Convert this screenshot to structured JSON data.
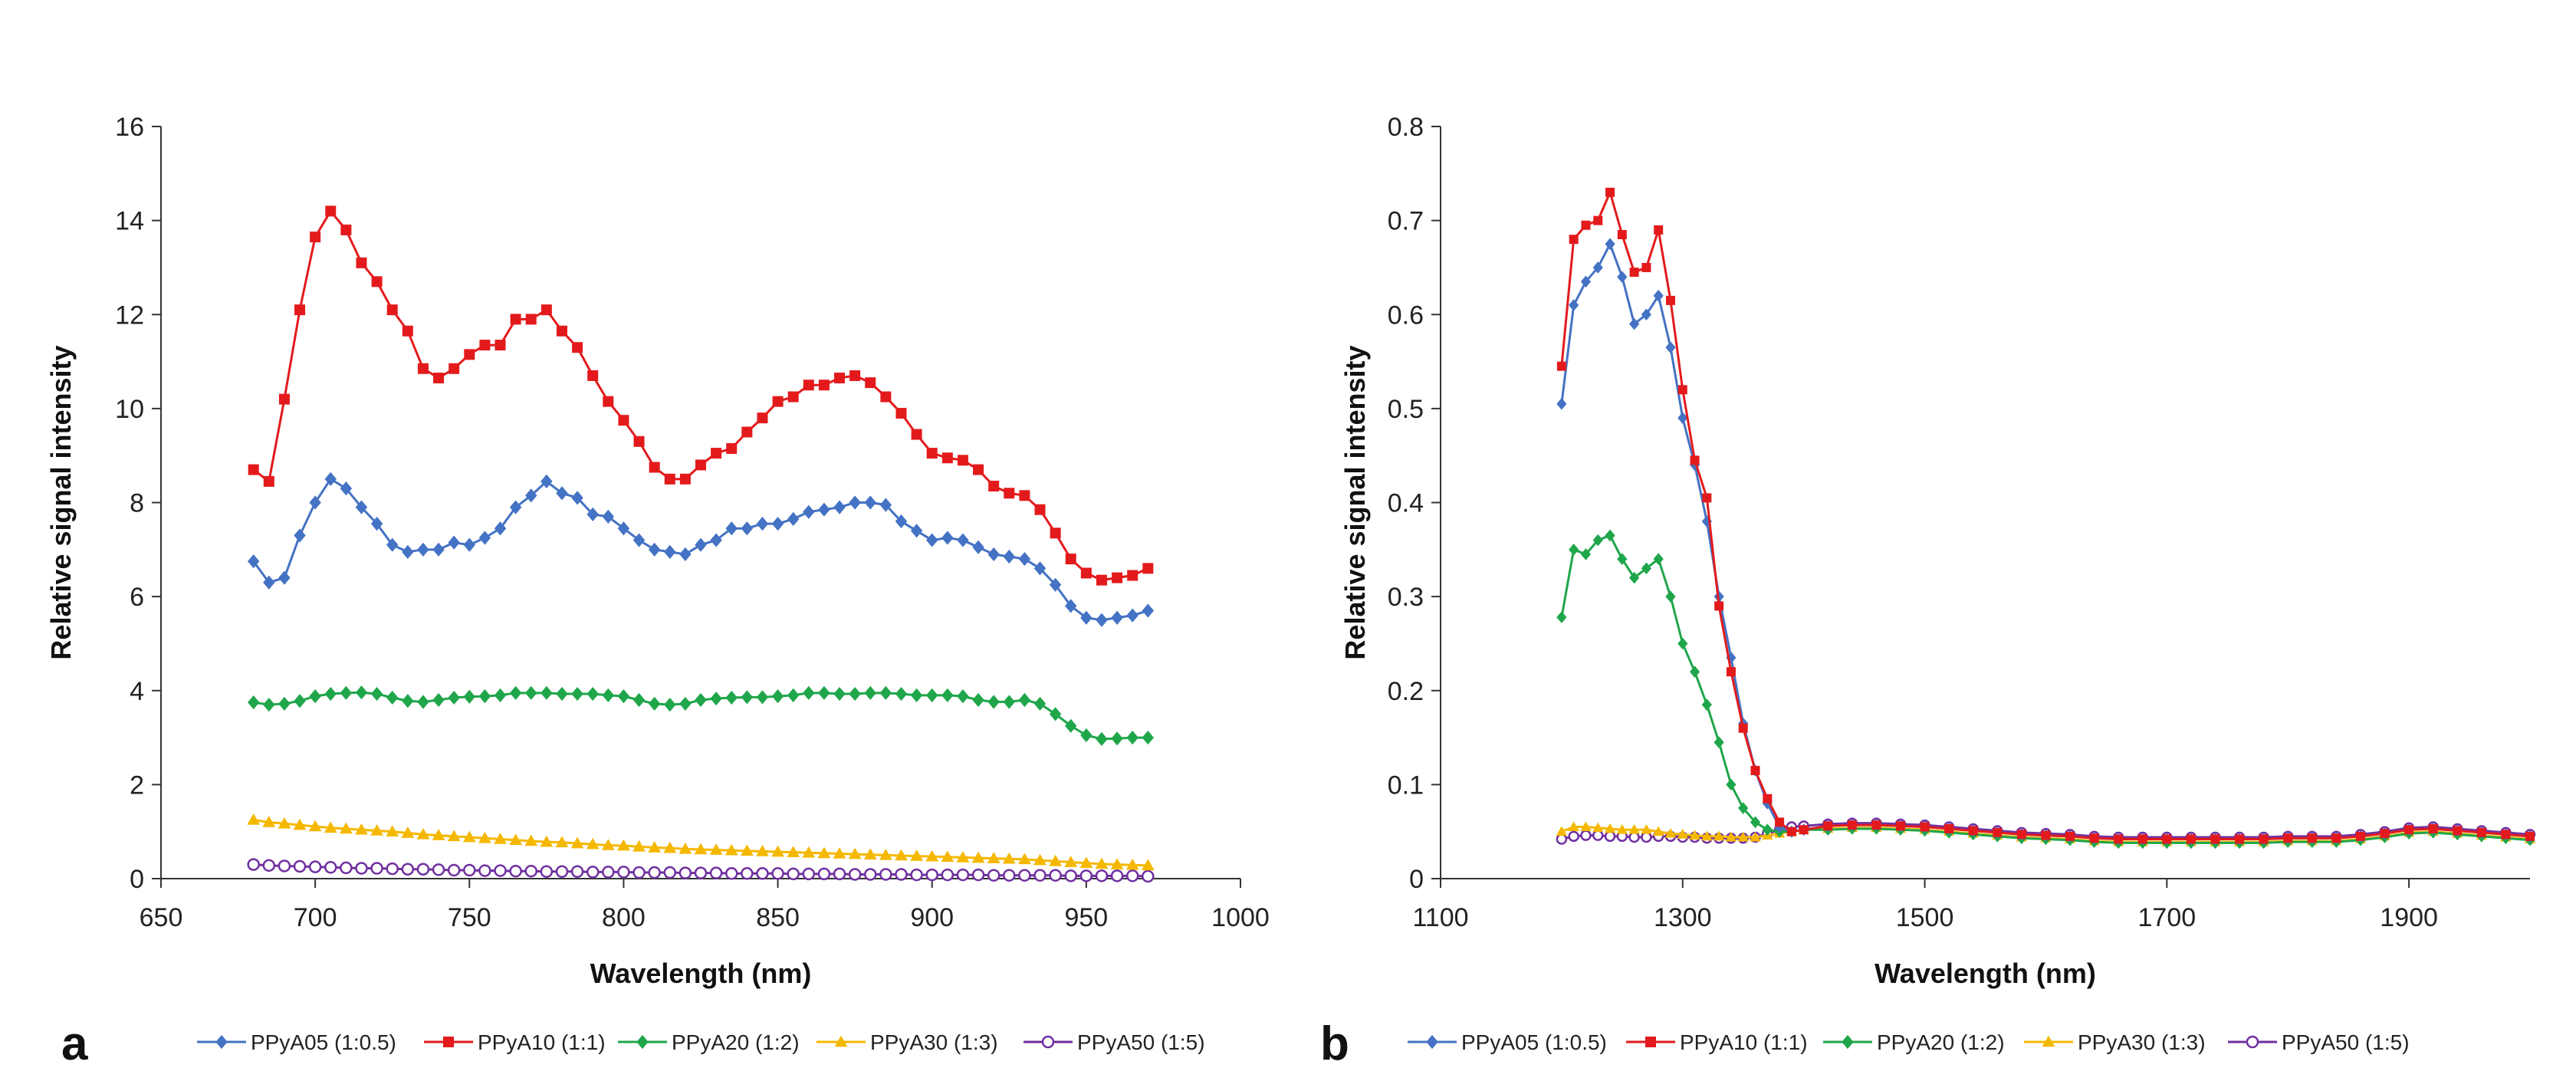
{
  "chart_data": [
    {
      "type": "line",
      "panel_label": "a",
      "xlabel": "Wavelength (nm)",
      "ylabel": "Relative signal intensity",
      "xlim": [
        650,
        1000
      ],
      "ylim": [
        0,
        16
      ],
      "xticks": [
        650,
        700,
        750,
        800,
        850,
        900,
        950,
        1000
      ],
      "yticks": [
        0,
        2,
        4,
        6,
        8,
        10,
        12,
        14,
        16
      ],
      "grid": false,
      "legend_position": "bottom",
      "x": [
        680,
        685,
        690,
        695,
        700,
        705,
        710,
        715,
        720,
        725,
        730,
        735,
        740,
        745,
        750,
        755,
        760,
        765,
        770,
        775,
        780,
        785,
        790,
        795,
        800,
        805,
        810,
        815,
        820,
        825,
        830,
        835,
        840,
        845,
        850,
        855,
        860,
        865,
        870,
        875,
        880,
        885,
        890,
        895,
        900,
        905,
        910,
        915,
        920,
        925,
        930,
        935,
        940,
        945,
        950,
        955,
        960,
        965,
        970
      ],
      "series": [
        {
          "name": "PPyA05 (1:0.5)",
          "color": "#4472C4",
          "marker": "diamond",
          "values": [
            6.75,
            6.3,
            6.4,
            7.3,
            8.0,
            8.5,
            8.3,
            7.9,
            7.55,
            7.1,
            6.95,
            7.0,
            7.0,
            7.15,
            7.1,
            7.25,
            7.45,
            7.9,
            8.15,
            8.45,
            8.2,
            8.1,
            7.75,
            7.7,
            7.45,
            7.2,
            7.0,
            6.95,
            6.9,
            7.1,
            7.2,
            7.45,
            7.45,
            7.55,
            7.55,
            7.65,
            7.8,
            7.85,
            7.9,
            8.0,
            8.0,
            7.95,
            7.6,
            7.4,
            7.2,
            7.25,
            7.2,
            7.05,
            6.9,
            6.85,
            6.8,
            6.6,
            6.25,
            5.8,
            5.55,
            5.5,
            5.55,
            5.6,
            5.7
          ]
        },
        {
          "name": "PPyA10 (1:1)",
          "color": "#E31A1C",
          "marker": "square",
          "values": [
            8.7,
            8.45,
            10.2,
            12.1,
            13.65,
            14.2,
            13.8,
            13.1,
            12.7,
            12.1,
            11.65,
            10.85,
            10.65,
            10.85,
            11.15,
            11.35,
            11.35,
            11.9,
            11.9,
            12.1,
            11.65,
            11.3,
            10.7,
            10.15,
            9.75,
            9.3,
            8.75,
            8.5,
            8.5,
            8.8,
            9.05,
            9.15,
            9.5,
            9.8,
            10.15,
            10.25,
            10.5,
            10.5,
            10.65,
            10.7,
            10.55,
            10.25,
            9.9,
            9.45,
            9.05,
            8.95,
            8.9,
            8.7,
            8.35,
            8.2,
            8.15,
            7.85,
            7.35,
            6.8,
            6.5,
            6.35,
            6.4,
            6.45,
            6.6
          ]
        },
        {
          "name": "PPyA20 (1:2)",
          "color": "#1FA64A",
          "marker": "diamond",
          "values": [
            3.75,
            3.7,
            3.72,
            3.78,
            3.88,
            3.93,
            3.95,
            3.96,
            3.93,
            3.85,
            3.78,
            3.76,
            3.8,
            3.85,
            3.87,
            3.88,
            3.9,
            3.95,
            3.95,
            3.95,
            3.93,
            3.93,
            3.93,
            3.9,
            3.88,
            3.8,
            3.72,
            3.7,
            3.72,
            3.8,
            3.83,
            3.85,
            3.86,
            3.86,
            3.88,
            3.9,
            3.95,
            3.95,
            3.93,
            3.93,
            3.95,
            3.95,
            3.93,
            3.9,
            3.9,
            3.9,
            3.88,
            3.8,
            3.76,
            3.76,
            3.8,
            3.72,
            3.5,
            3.25,
            3.05,
            2.97,
            2.98,
            3.0,
            3.0
          ]
        },
        {
          "name": "PPyA30 (1:3)",
          "color": "#F5B800",
          "marker": "triangle",
          "values": [
            1.25,
            1.2,
            1.17,
            1.14,
            1.11,
            1.08,
            1.06,
            1.04,
            1.02,
            1.0,
            0.97,
            0.94,
            0.92,
            0.9,
            0.88,
            0.86,
            0.84,
            0.82,
            0.8,
            0.78,
            0.77,
            0.75,
            0.73,
            0.71,
            0.7,
            0.68,
            0.66,
            0.65,
            0.63,
            0.62,
            0.61,
            0.6,
            0.59,
            0.58,
            0.57,
            0.56,
            0.55,
            0.54,
            0.53,
            0.52,
            0.51,
            0.5,
            0.49,
            0.48,
            0.47,
            0.46,
            0.45,
            0.44,
            0.43,
            0.42,
            0.41,
            0.39,
            0.37,
            0.35,
            0.33,
            0.31,
            0.3,
            0.29,
            0.28
          ]
        },
        {
          "name": "PPyA50 (1:5)",
          "color": "#7030A0",
          "marker": "circle-open",
          "values": [
            0.3,
            0.28,
            0.27,
            0.26,
            0.25,
            0.24,
            0.23,
            0.22,
            0.22,
            0.21,
            0.2,
            0.2,
            0.19,
            0.18,
            0.18,
            0.17,
            0.17,
            0.16,
            0.16,
            0.15,
            0.15,
            0.15,
            0.14,
            0.14,
            0.14,
            0.13,
            0.13,
            0.13,
            0.12,
            0.12,
            0.12,
            0.11,
            0.11,
            0.11,
            0.11,
            0.1,
            0.1,
            0.1,
            0.1,
            0.09,
            0.09,
            0.09,
            0.09,
            0.08,
            0.08,
            0.08,
            0.08,
            0.08,
            0.07,
            0.07,
            0.07,
            0.07,
            0.07,
            0.06,
            0.06,
            0.06,
            0.06,
            0.06,
            0.05
          ]
        }
      ]
    },
    {
      "type": "line",
      "panel_label": "b",
      "xlabel": "Wavelength (nm)",
      "ylabel": "Relative signal intensity",
      "xlim": [
        1100,
        2000
      ],
      "ylim": [
        0,
        0.8
      ],
      "xticks": [
        1100,
        1300,
        1500,
        1700,
        1900
      ],
      "yticks": [
        0,
        0.1,
        0.2,
        0.3,
        0.4,
        0.5,
        0.6,
        0.7,
        0.8
      ],
      "grid": false,
      "legend_position": "bottom",
      "x": [
        1200,
        1210,
        1220,
        1230,
        1240,
        1250,
        1260,
        1270,
        1280,
        1290,
        1300,
        1310,
        1320,
        1330,
        1340,
        1350,
        1360,
        1370,
        1380,
        1390,
        1400,
        1420,
        1440,
        1460,
        1480,
        1500,
        1520,
        1540,
        1560,
        1580,
        1600,
        1620,
        1640,
        1660,
        1680,
        1700,
        1720,
        1740,
        1760,
        1780,
        1800,
        1820,
        1840,
        1860,
        1880,
        1900,
        1920,
        1940,
        1960,
        1980,
        2000
      ],
      "series": [
        {
          "name": "PPyA05 (1:0.5)",
          "color": "#4472C4",
          "marker": "diamond",
          "values": [
            0.505,
            0.61,
            0.635,
            0.65,
            0.675,
            0.64,
            0.59,
            0.6,
            0.62,
            0.565,
            0.49,
            0.44,
            0.38,
            0.3,
            0.235,
            0.165,
            0.115,
            0.08,
            0.055,
            0.05,
            0.052,
            0.056,
            0.057,
            0.057,
            0.056,
            0.055,
            0.053,
            0.051,
            0.049,
            0.047,
            0.046,
            0.045,
            0.043,
            0.042,
            0.042,
            0.042,
            0.042,
            0.042,
            0.042,
            0.042,
            0.043,
            0.043,
            0.043,
            0.045,
            0.048,
            0.052,
            0.053,
            0.051,
            0.049,
            0.047,
            0.045
          ]
        },
        {
          "name": "PPyA10 (1:1)",
          "color": "#E31A1C",
          "marker": "square",
          "values": [
            0.545,
            0.68,
            0.695,
            0.7,
            0.73,
            0.685,
            0.645,
            0.65,
            0.69,
            0.615,
            0.52,
            0.445,
            0.405,
            0.29,
            0.22,
            0.16,
            0.115,
            0.085,
            0.06,
            0.05,
            0.052,
            0.056,
            0.057,
            0.057,
            0.056,
            0.055,
            0.053,
            0.051,
            0.049,
            0.047,
            0.046,
            0.045,
            0.043,
            0.042,
            0.042,
            0.042,
            0.042,
            0.042,
            0.042,
            0.042,
            0.043,
            0.043,
            0.043,
            0.045,
            0.048,
            0.052,
            0.053,
            0.051,
            0.049,
            0.047,
            0.045
          ]
        },
        {
          "name": "PPyA20 (1:2)",
          "color": "#1FA64A",
          "marker": "diamond",
          "values": [
            0.278,
            0.35,
            0.345,
            0.36,
            0.365,
            0.34,
            0.32,
            0.33,
            0.34,
            0.3,
            0.25,
            0.22,
            0.185,
            0.145,
            0.1,
            0.075,
            0.06,
            0.052,
            0.05,
            0.05,
            0.052,
            0.052,
            0.053,
            0.053,
            0.052,
            0.051,
            0.049,
            0.047,
            0.045,
            0.043,
            0.042,
            0.041,
            0.039,
            0.038,
            0.038,
            0.038,
            0.038,
            0.038,
            0.038,
            0.038,
            0.039,
            0.039,
            0.039,
            0.041,
            0.044,
            0.048,
            0.049,
            0.047,
            0.045,
            0.043,
            0.041
          ]
        },
        {
          "name": "PPyA30 (1:3)",
          "color": "#F5B800",
          "marker": "triangle",
          "values": [
            0.05,
            0.055,
            0.055,
            0.054,
            0.053,
            0.052,
            0.052,
            0.052,
            0.05,
            0.048,
            0.047,
            0.046,
            0.045,
            0.045,
            0.044,
            0.044,
            0.044,
            0.046,
            0.048,
            0.05,
            0.052,
            0.053,
            0.054,
            0.054,
            0.053,
            0.052,
            0.05,
            0.048,
            0.046,
            0.044,
            0.043,
            0.042,
            0.04,
            0.039,
            0.039,
            0.039,
            0.039,
            0.039,
            0.039,
            0.039,
            0.04,
            0.04,
            0.04,
            0.042,
            0.045,
            0.049,
            0.05,
            0.048,
            0.046,
            0.044,
            0.042
          ]
        },
        {
          "name": "PPyA50 (1:5)",
          "color": "#7030A0",
          "marker": "circle-open",
          "values": [
            0.042,
            0.045,
            0.046,
            0.046,
            0.045,
            0.045,
            0.044,
            0.044,
            0.045,
            0.045,
            0.044,
            0.044,
            0.043,
            0.043,
            0.043,
            0.043,
            0.044,
            0.048,
            0.052,
            0.055,
            0.056,
            0.058,
            0.059,
            0.059,
            0.058,
            0.057,
            0.055,
            0.053,
            0.051,
            0.049,
            0.048,
            0.047,
            0.045,
            0.044,
            0.044,
            0.044,
            0.044,
            0.044,
            0.044,
            0.044,
            0.045,
            0.045,
            0.045,
            0.047,
            0.05,
            0.054,
            0.055,
            0.053,
            0.051,
            0.049,
            0.047
          ]
        }
      ]
    }
  ]
}
